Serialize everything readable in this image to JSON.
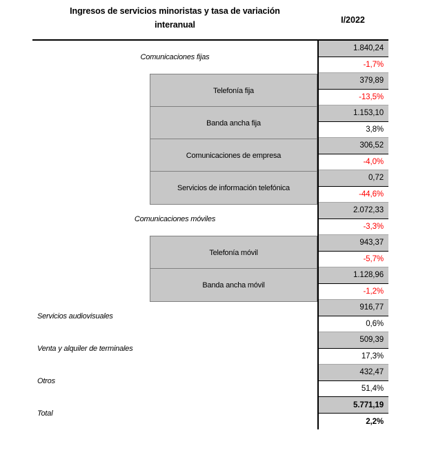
{
  "header": {
    "title_line1": "Ingresos de servicios minoristas y tasa de variación",
    "title_line2": "interanual",
    "period": "I/2022"
  },
  "colors": {
    "negative_pct": "#FF0000",
    "positive_pct": "#000000",
    "cell_gray": "#C7C7C7",
    "border_black": "#000000",
    "border_gray": "#808080"
  },
  "chart_data": {
    "type": "table",
    "title": "Ingresos de servicios minoristas y tasa de variación interanual",
    "period": "I/2022",
    "rows": [
      {
        "label": "Comunicaciones fijas",
        "level": 2,
        "value": "1.840,24",
        "pct": "-1,7%",
        "negative": true,
        "total": false
      },
      {
        "label": "Telefonía fija",
        "level": 3,
        "value": "379,89",
        "pct": "-13,5%",
        "negative": true,
        "total": false
      },
      {
        "label": "Banda ancha fija",
        "level": 3,
        "value": "1.153,10",
        "pct": "3,8%",
        "negative": false,
        "total": false
      },
      {
        "label": "Comunicaciones de empresa",
        "level": 3,
        "value": "306,52",
        "pct": "-4,0%",
        "negative": true,
        "total": false
      },
      {
        "label": "Servicios de información telefónica",
        "level": 3,
        "value": "0,72",
        "pct": "-44,6%",
        "negative": true,
        "total": false
      },
      {
        "label": "Comunicaciones móviles",
        "level": 2,
        "value": "2.072,33",
        "pct": "-3,3%",
        "negative": true,
        "total": false
      },
      {
        "label": "Telefonía móvil",
        "level": 3,
        "value": "943,37",
        "pct": "-5,7%",
        "negative": true,
        "total": false
      },
      {
        "label": "Banda ancha móvil",
        "level": 3,
        "value": "1.128,96",
        "pct": "-1,2%",
        "negative": true,
        "total": false
      },
      {
        "label": "Servicios audiovisuales",
        "level": 1,
        "value": "916,77",
        "pct": "0,6%",
        "negative": false,
        "total": false
      },
      {
        "label": "Venta y alquiler de terminales",
        "level": 1,
        "value": "509,39",
        "pct": "17,3%",
        "negative": false,
        "total": false
      },
      {
        "label": "Otros",
        "level": 1,
        "value": "432,47",
        "pct": "51,4%",
        "negative": false,
        "total": false
      },
      {
        "label": "Total",
        "level": 1,
        "value": "5.771,19",
        "pct": "2,2%",
        "negative": false,
        "total": true
      }
    ]
  }
}
